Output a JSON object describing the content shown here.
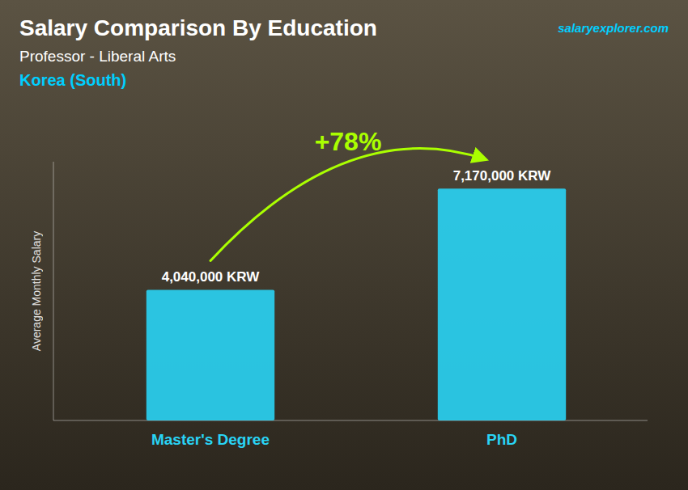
{
  "chart_data": {
    "type": "bar",
    "title": "Salary Comparison By Education",
    "subtitle": "Professor - Liberal Arts",
    "ylabel": "Average Monthly Salary",
    "annotations": [
      "Korea (South)",
      "+78%",
      "salaryexplorer.com"
    ],
    "categories": [
      "Master's Degree",
      "PhD"
    ],
    "values": [
      4040000,
      7170000
    ],
    "value_labels": [
      "4,040,000 KRW",
      "7,170,000 KRW"
    ],
    "color": "#29D4F5",
    "ylim": [
      0,
      8000000
    ],
    "data_labels": true,
    "tick_labels": "x",
    "grid": false
  }
}
